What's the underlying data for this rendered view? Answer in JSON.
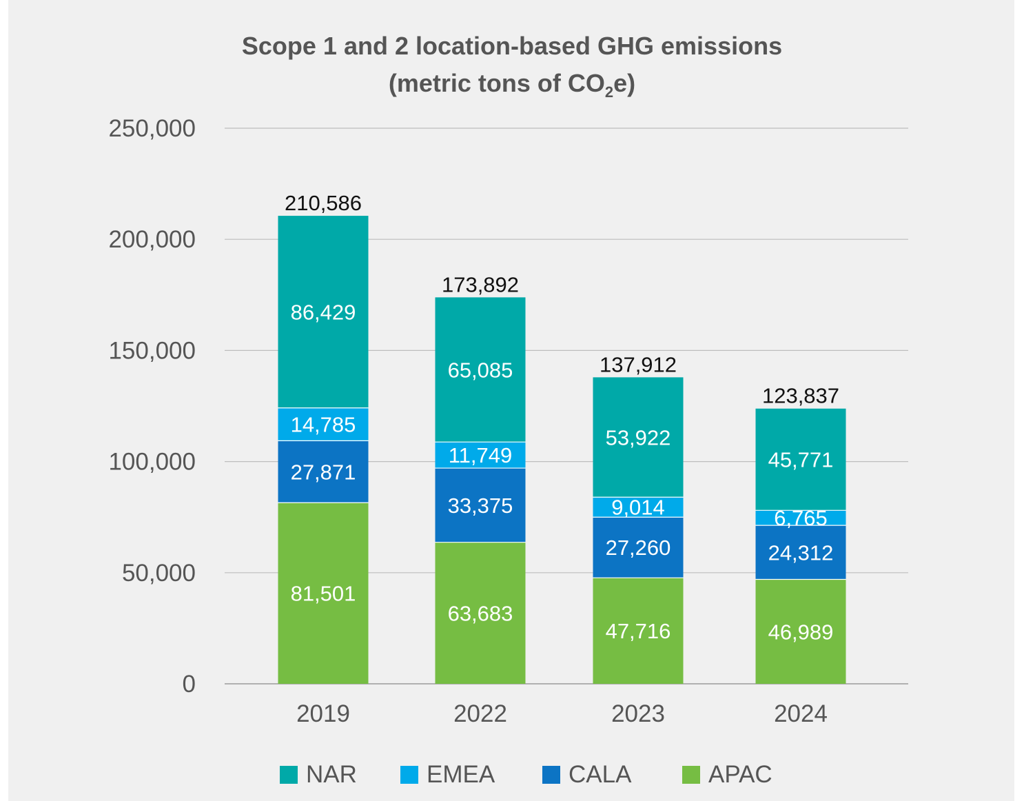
{
  "chart_data": {
    "type": "bar",
    "stacked": true,
    "title_line1": "Scope 1 and 2 location-based GHG emissions",
    "title_line2_pre": "(metric tons of CO",
    "title_line2_sub": "2",
    "title_line2_post": "e)",
    "categories": [
      "2019",
      "2022",
      "2023",
      "2024"
    ],
    "series": [
      {
        "name": "APAC",
        "color": "#76bd43",
        "values": [
          81501,
          63683,
          47716,
          46989
        ]
      },
      {
        "name": "CALA",
        "color": "#0c74c4",
        "values": [
          27871,
          33375,
          27260,
          24312
        ]
      },
      {
        "name": "EMEA",
        "color": "#00aaea",
        "values": [
          14785,
          11749,
          9014,
          6765
        ]
      },
      {
        "name": "NAR",
        "color": "#00a9a8",
        "values": [
          86429,
          65085,
          53922,
          45771
        ]
      }
    ],
    "series_labels": [
      [
        "81,501",
        "63,683",
        "47,716",
        "46,989"
      ],
      [
        "27,871",
        "33,375",
        "27,260",
        "24,312"
      ],
      [
        "14,785",
        "11,749",
        "9,014",
        "6,765"
      ],
      [
        "86,429",
        "65,085",
        "53,922",
        "45,771"
      ]
    ],
    "totals": [
      210586,
      173892,
      137912,
      123837
    ],
    "total_labels": [
      "210,586",
      "173,892",
      "137,912",
      "123,837"
    ],
    "ylim": [
      0,
      250000
    ],
    "yticks": [
      0,
      50000,
      100000,
      150000,
      200000,
      250000
    ],
    "ytick_labels": [
      "0",
      "50,000",
      "100,000",
      "150,000",
      "200,000",
      "250,000"
    ],
    "legend": [
      "NAR",
      "EMEA",
      "CALA",
      "APAC"
    ],
    "legend_colors": [
      "#00a9a8",
      "#00aaea",
      "#0c74c4",
      "#76bd43"
    ],
    "legend_position": "bottom",
    "grid": true,
    "xlabel": "",
    "ylabel": ""
  }
}
